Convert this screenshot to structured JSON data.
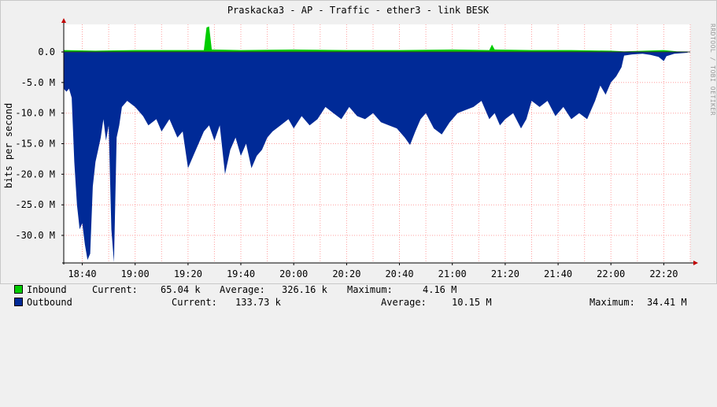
{
  "title": "Praskacka3 - AP - Traffic - ether3 - link BESK",
  "watermark": "RRDTOOL / TOBI OETIKER",
  "colors": {
    "background": "#f0f0f0",
    "plot_background": "#ffffff",
    "grid": "#ff9f9f",
    "inbound": "#00cc00",
    "outbound": "#002a97",
    "axis": "#000000"
  },
  "legend": {
    "inbound": {
      "name": "Inbound",
      "current_label": "Current:",
      "current_value": "65.04 k",
      "average_label": "Average:",
      "average_value": "326.16 k",
      "maximum_label": "Maximum:",
      "maximum_value": "4.16 M"
    },
    "outbound": {
      "name": "Outbound",
      "current_label": "Current:",
      "current_value": "133.73 k",
      "average_label": "Average:",
      "average_value": "10.15 M",
      "maximum_label": "Maximum:",
      "maximum_value": "34.41 M"
    }
  },
  "chart_data": {
    "type": "area",
    "title": "Praskacka3 - AP - Traffic - ether3 - link BESK",
    "ylabel": "bits per second",
    "xlabel": "",
    "y_unit_label": "M",
    "ylim": [
      -34.5,
      4.5
    ],
    "yticks": [
      0,
      -5,
      -10,
      -15,
      -20,
      -25,
      -30
    ],
    "ytick_labels": [
      "0.0",
      "-5.0 M",
      "-10.0 M",
      "-15.0 M",
      "-20.0 M",
      "-25.0 M",
      "-30.0 M"
    ],
    "xtick_labels": [
      "18:40",
      "19:00",
      "19:20",
      "19:40",
      "20:00",
      "20:20",
      "20:40",
      "21:00",
      "21:20",
      "21:40",
      "22:00",
      "22:20"
    ],
    "xlim": [
      "18:33",
      "22:30"
    ],
    "grid": true,
    "legend_placement": "bottom",
    "series": [
      {
        "name": "Inbound",
        "color": "#00cc00",
        "points": [
          [
            "18:33",
            0.3
          ],
          [
            "18:45",
            0.2
          ],
          [
            "19:00",
            0.3
          ],
          [
            "19:15",
            0.3
          ],
          [
            "19:26",
            0.3
          ],
          [
            "19:27",
            4.0
          ],
          [
            "19:28",
            4.16
          ],
          [
            "19:29",
            0.4
          ],
          [
            "19:40",
            0.3
          ],
          [
            "20:00",
            0.4
          ],
          [
            "20:20",
            0.3
          ],
          [
            "20:40",
            0.3
          ],
          [
            "21:00",
            0.4
          ],
          [
            "21:14",
            0.3
          ],
          [
            "21:15",
            1.2
          ],
          [
            "21:16",
            0.4
          ],
          [
            "21:30",
            0.3
          ],
          [
            "21:45",
            0.3
          ],
          [
            "22:00",
            0.2
          ],
          [
            "22:05",
            0.1
          ],
          [
            "22:20",
            0.3
          ],
          [
            "22:25",
            0.1
          ],
          [
            "22:29",
            0.07
          ]
        ]
      },
      {
        "name": "Outbound",
        "color": "#002a97",
        "points": [
          [
            "18:33",
            -6.0
          ],
          [
            "18:34",
            -6.5
          ],
          [
            "18:35",
            -6.0
          ],
          [
            "18:36",
            -7.5
          ],
          [
            "18:37",
            -18.0
          ],
          [
            "18:38",
            -25.0
          ],
          [
            "18:39",
            -29.0
          ],
          [
            "18:40",
            -28.0
          ],
          [
            "18:41",
            -31.5
          ],
          [
            "18:42",
            -34.0
          ],
          [
            "18:43",
            -33.0
          ],
          [
            "18:44",
            -22.0
          ],
          [
            "18:45",
            -18.0
          ],
          [
            "18:46",
            -16.0
          ],
          [
            "18:47",
            -14.0
          ],
          [
            "18:48",
            -11.0
          ],
          [
            "18:49",
            -14.5
          ],
          [
            "18:50",
            -12.0
          ],
          [
            "18:51",
            -29.0
          ],
          [
            "18:52",
            -34.41
          ],
          [
            "18:53",
            -14.0
          ],
          [
            "18:54",
            -12.0
          ],
          [
            "18:55",
            -9.0
          ],
          [
            "18:57",
            -8.0
          ],
          [
            "19:00",
            -9.0
          ],
          [
            "19:03",
            -10.5
          ],
          [
            "19:05",
            -12.0
          ],
          [
            "19:08",
            -11.0
          ],
          [
            "19:10",
            -13.0
          ],
          [
            "19:13",
            -11.0
          ],
          [
            "19:16",
            -14.0
          ],
          [
            "19:18",
            -13.0
          ],
          [
            "19:20",
            -19.0
          ],
          [
            "19:22",
            -17.0
          ],
          [
            "19:24",
            -15.0
          ],
          [
            "19:26",
            -13.0
          ],
          [
            "19:28",
            -12.0
          ],
          [
            "19:30",
            -14.5
          ],
          [
            "19:32",
            -12.0
          ],
          [
            "19:34",
            -20.0
          ],
          [
            "19:36",
            -16.0
          ],
          [
            "19:38",
            -14.0
          ],
          [
            "19:40",
            -17.0
          ],
          [
            "19:42",
            -15.0
          ],
          [
            "19:44",
            -19.0
          ],
          [
            "19:46",
            -17.0
          ],
          [
            "19:48",
            -16.0
          ],
          [
            "19:50",
            -14.0
          ],
          [
            "19:52",
            -13.0
          ],
          [
            "19:55",
            -12.0
          ],
          [
            "19:58",
            -11.0
          ],
          [
            "20:00",
            -12.5
          ],
          [
            "20:03",
            -10.5
          ],
          [
            "20:06",
            -12.0
          ],
          [
            "20:09",
            -11.0
          ],
          [
            "20:12",
            -9.0
          ],
          [
            "20:15",
            -10.0
          ],
          [
            "20:18",
            -11.0
          ],
          [
            "20:21",
            -9.0
          ],
          [
            "20:24",
            -10.5
          ],
          [
            "20:27",
            -11.0
          ],
          [
            "20:30",
            -10.0
          ],
          [
            "20:33",
            -11.5
          ],
          [
            "20:36",
            -12.0
          ],
          [
            "20:39",
            -12.5
          ],
          [
            "20:42",
            -14.0
          ],
          [
            "20:44",
            -15.2
          ],
          [
            "20:46",
            -13.0
          ],
          [
            "20:48",
            -11.0
          ],
          [
            "20:50",
            -10.0
          ],
          [
            "20:53",
            -12.5
          ],
          [
            "20:56",
            -13.5
          ],
          [
            "20:59",
            -11.5
          ],
          [
            "21:02",
            -10.0
          ],
          [
            "21:05",
            -9.5
          ],
          [
            "21:08",
            -9.0
          ],
          [
            "21:11",
            -8.0
          ],
          [
            "21:14",
            -11.0
          ],
          [
            "21:16",
            -10.0
          ],
          [
            "21:18",
            -12.0
          ],
          [
            "21:20",
            -11.0
          ],
          [
            "21:23",
            -10.0
          ],
          [
            "21:26",
            -12.5
          ],
          [
            "21:28",
            -11.0
          ],
          [
            "21:30",
            -8.0
          ],
          [
            "21:33",
            -9.0
          ],
          [
            "21:36",
            -8.0
          ],
          [
            "21:39",
            -10.5
          ],
          [
            "21:42",
            -9.0
          ],
          [
            "21:45",
            -11.0
          ],
          [
            "21:48",
            -10.0
          ],
          [
            "21:51",
            -11.0
          ],
          [
            "21:54",
            -8.0
          ],
          [
            "21:56",
            -5.5
          ],
          [
            "21:58",
            -7.0
          ],
          [
            "22:00",
            -5.0
          ],
          [
            "22:02",
            -4.0
          ],
          [
            "22:04",
            -2.5
          ],
          [
            "22:05",
            -0.6
          ],
          [
            "22:08",
            -0.4
          ],
          [
            "22:12",
            -0.3
          ],
          [
            "22:15",
            -0.5
          ],
          [
            "22:18",
            -0.8
          ],
          [
            "22:20",
            -1.5
          ],
          [
            "22:21",
            -0.7
          ],
          [
            "22:24",
            -0.3
          ],
          [
            "22:29",
            -0.13
          ]
        ]
      }
    ]
  }
}
